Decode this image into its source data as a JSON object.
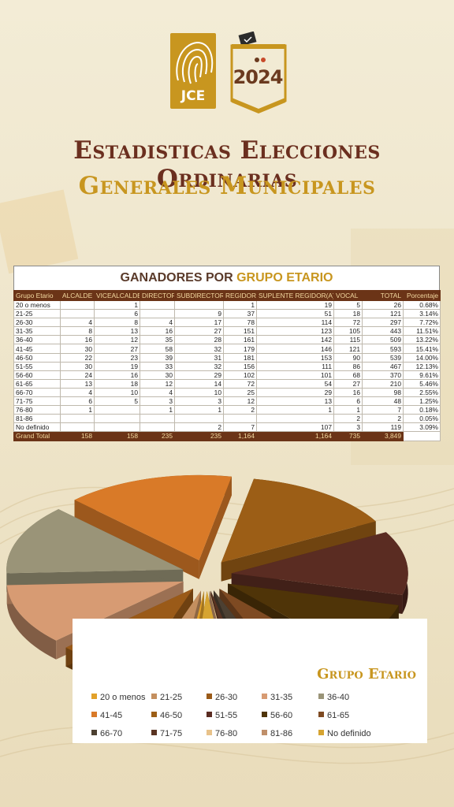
{
  "header": {
    "logo_text": "JCE",
    "year_text": "2024",
    "title_line1": "Estadisticas Elecciones Ordinarias",
    "title_line2": "Generales Municipales"
  },
  "table": {
    "title_prefix": "GANADORES POR ",
    "title_highlight": "GRUPO ETARIO",
    "columns": [
      "Grupo Etario",
      "ALCALDE",
      "VICEALCALDE",
      "DIRECTOR",
      "SUBDIRECTOR",
      "REGIDOR",
      "SUPLENTE REGIDOR(A)",
      "VOCAL",
      "TOTAL",
      "Porcentaje"
    ],
    "rows": [
      [
        "20 o menos",
        "",
        "1",
        "",
        "",
        "1",
        "19",
        "5",
        "26",
        "0.68%"
      ],
      [
        "21-25",
        "",
        "6",
        "",
        "9",
        "37",
        "51",
        "18",
        "121",
        "3.14%"
      ],
      [
        "26-30",
        "4",
        "8",
        "4",
        "17",
        "78",
        "114",
        "72",
        "297",
        "7.72%"
      ],
      [
        "31-35",
        "8",
        "13",
        "16",
        "27",
        "151",
        "123",
        "105",
        "443",
        "11.51%"
      ],
      [
        "36-40",
        "16",
        "12",
        "35",
        "28",
        "161",
        "142",
        "115",
        "509",
        "13.22%"
      ],
      [
        "41-45",
        "30",
        "27",
        "58",
        "32",
        "179",
        "146",
        "121",
        "593",
        "15.41%"
      ],
      [
        "46-50",
        "22",
        "23",
        "39",
        "31",
        "181",
        "153",
        "90",
        "539",
        "14.00%"
      ],
      [
        "51-55",
        "30",
        "19",
        "33",
        "32",
        "156",
        "111",
        "86",
        "467",
        "12.13%"
      ],
      [
        "56-60",
        "24",
        "16",
        "30",
        "29",
        "102",
        "101",
        "68",
        "370",
        "9.61%"
      ],
      [
        "61-65",
        "13",
        "18",
        "12",
        "14",
        "72",
        "54",
        "27",
        "210",
        "5.46%"
      ],
      [
        "66-70",
        "4",
        "10",
        "4",
        "10",
        "25",
        "29",
        "16",
        "98",
        "2.55%"
      ],
      [
        "71-75",
        "6",
        "5",
        "3",
        "3",
        "12",
        "13",
        "6",
        "48",
        "1.25%"
      ],
      [
        "76-80",
        "1",
        "",
        "1",
        "1",
        "2",
        "1",
        "1",
        "7",
        "0.18%"
      ],
      [
        "81-86",
        "",
        "",
        "",
        "",
        "",
        "",
        "2",
        "2",
        "0.05%"
      ],
      [
        "No definido",
        "",
        "",
        "",
        "2",
        "7",
        "107",
        "3",
        "119",
        "3.09%"
      ]
    ],
    "total_row": [
      "Grand Total",
      "158",
      "158",
      "235",
      "235",
      "1,164",
      "1,164",
      "735",
      "3,849",
      ""
    ]
  },
  "chart_data": {
    "type": "pie",
    "title": "Grupo Etario",
    "categories": [
      "20 o menos",
      "21-25",
      "26-30",
      "31-35",
      "36-40",
      "41-45",
      "46-50",
      "51-55",
      "56-60",
      "61-65",
      "66-70",
      "71-75",
      "76-80",
      "81-86",
      "No definido"
    ],
    "values": [
      26,
      121,
      297,
      443,
      509,
      593,
      539,
      467,
      370,
      210,
      98,
      48,
      7,
      2,
      119
    ],
    "colors": [
      "#e2a12a",
      "#c48f5f",
      "#9a5a18",
      "#d79b73",
      "#9a9478",
      "#d97a28",
      "#9c5e16",
      "#5a2c22",
      "#4f3408",
      "#7e4a22",
      "#4c4032",
      "#5a3422",
      "#e8c28a",
      "#bf8f6a",
      "#d6a431"
    ],
    "legend_position": "bottom-right"
  }
}
